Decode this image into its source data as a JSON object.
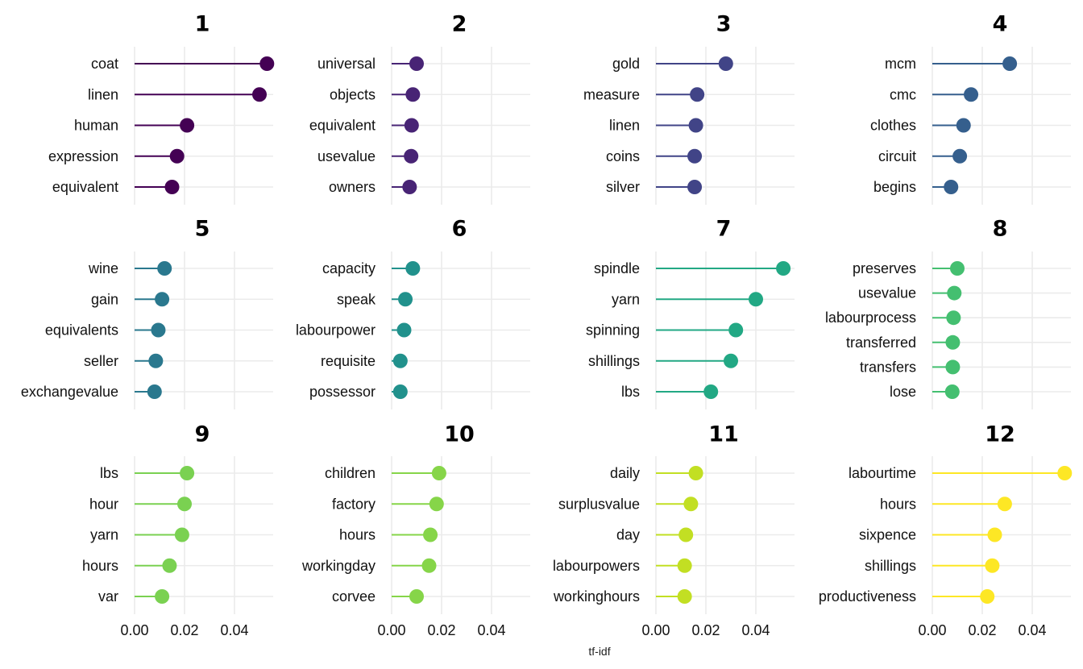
{
  "chart_data": {
    "type": "lollipop",
    "xlabel": "tf-idf",
    "xlim": [
      0,
      0.055
    ],
    "xticks": [
      "0.00",
      "0.02",
      "0.04"
    ],
    "panels": [
      {
        "title": "1",
        "color": "#440154",
        "terms": [
          "coat",
          "linen",
          "human",
          "expression",
          "equivalent"
        ],
        "values": [
          0.053,
          0.05,
          0.021,
          0.017,
          0.015
        ]
      },
      {
        "title": "2",
        "color": "#482475",
        "terms": [
          "universal",
          "objects",
          "equivalent",
          "usevalue",
          "owners"
        ],
        "values": [
          0.01,
          0.0085,
          0.008,
          0.0078,
          0.0072
        ]
      },
      {
        "title": "3",
        "color": "#414487",
        "terms": [
          "gold",
          "measure",
          "linen",
          "coins",
          "silver"
        ],
        "values": [
          0.028,
          0.0165,
          0.016,
          0.0155,
          0.0155
        ]
      },
      {
        "title": "4",
        "color": "#355F8D",
        "terms": [
          "mcm",
          "cmc",
          "clothes",
          "circuit",
          "begins"
        ],
        "values": [
          0.031,
          0.0155,
          0.0125,
          0.011,
          0.0075
        ]
      },
      {
        "title": "5",
        "color": "#2A788E",
        "terms": [
          "wine",
          "gain",
          "equivalents",
          "seller",
          "exchangevalue"
        ],
        "values": [
          0.012,
          0.011,
          0.0095,
          0.0085,
          0.008
        ]
      },
      {
        "title": "6",
        "color": "#21918C",
        "terms": [
          "capacity",
          "speak",
          "labourpower",
          "requisite",
          "possessor"
        ],
        "values": [
          0.0085,
          0.0055,
          0.005,
          0.0035,
          0.0035
        ]
      },
      {
        "title": "7",
        "color": "#22A884",
        "terms": [
          "spindle",
          "yarn",
          "spinning",
          "shillings",
          "lbs"
        ],
        "values": [
          0.051,
          0.04,
          0.032,
          0.03,
          0.022
        ]
      },
      {
        "title": "8",
        "color": "#44BF70",
        "terms": [
          "preserves",
          "usevalue",
          "labourprocess",
          "transferred",
          "transfers",
          "lose"
        ],
        "values": [
          0.01,
          0.0088,
          0.0085,
          0.0082,
          0.0082,
          0.008
        ]
      },
      {
        "title": "9",
        "color": "#7AD151",
        "terms": [
          "lbs",
          "hour",
          "yarn",
          "hours",
          "var"
        ],
        "values": [
          0.021,
          0.02,
          0.019,
          0.014,
          0.011
        ]
      },
      {
        "title": "10",
        "color": "#86D549",
        "terms": [
          "children",
          "factory",
          "hours",
          "workingday",
          "corvee"
        ],
        "values": [
          0.019,
          0.018,
          0.0155,
          0.015,
          0.01
        ]
      },
      {
        "title": "11",
        "color": "#C2DF23",
        "terms": [
          "daily",
          "surplusvalue",
          "day",
          "labourpowers",
          "workinghours"
        ],
        "values": [
          0.016,
          0.014,
          0.012,
          0.0115,
          0.0115
        ]
      },
      {
        "title": "12",
        "color": "#FDE725",
        "terms": [
          "labourtime",
          "hours",
          "sixpence",
          "shillings",
          "productiveness"
        ],
        "values": [
          0.053,
          0.029,
          0.025,
          0.024,
          0.022
        ]
      }
    ]
  }
}
